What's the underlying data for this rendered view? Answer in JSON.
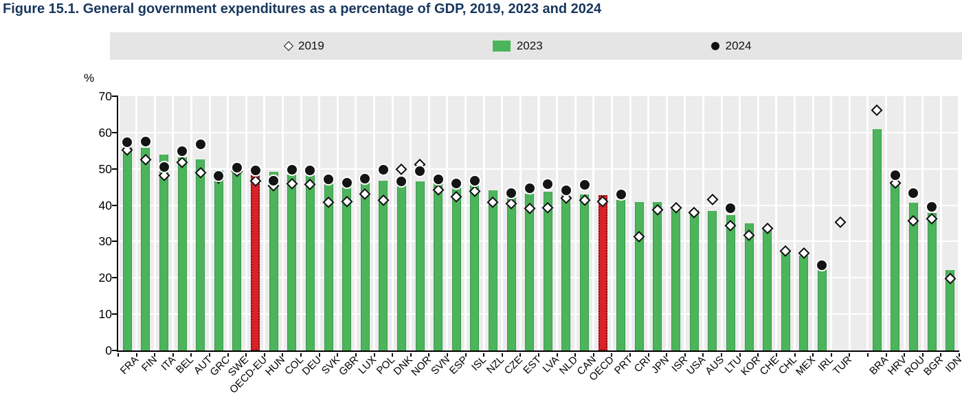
{
  "title": "Figure 15.1. General government expenditures as a percentage of GDP, 2019, 2023 and 2024",
  "legend": [
    {
      "label": "2019",
      "marker": "diamond"
    },
    {
      "label": "2023",
      "marker": "bar"
    },
    {
      "label": "2024",
      "marker": "dot"
    }
  ],
  "y_axis": {
    "unit_label": "%",
    "ticks": [
      0,
      10,
      20,
      30,
      40,
      50,
      60,
      70
    ],
    "max": 70
  },
  "chart_data": {
    "type": "bar",
    "title": "General government expenditures as a percentage of GDP, 2019, 2023 and 2024",
    "xlabel": "",
    "ylabel": "%",
    "ylim": [
      0,
      70
    ],
    "grid": true,
    "legend_position": "top",
    "categories": [
      "FRA",
      "FIN",
      "ITA",
      "BEL",
      "AUT",
      "GRC",
      "SWE",
      "OECD-EU",
      "HUN",
      "COL",
      "DEU",
      "SVK",
      "GBR",
      "LUX",
      "POL",
      "DNK",
      "NOR",
      "SVN",
      "ESP",
      "ISL",
      "NZL",
      "CZE",
      "EST",
      "LVA",
      "NLD",
      "CAN",
      "OECD",
      "PRT",
      "CRI",
      "JPN",
      "ISR",
      "USA",
      "AUS",
      "LTU",
      "KOR",
      "CHE",
      "CHL",
      "MEX",
      "IRL",
      "TUR",
      "BRA",
      "HRV",
      "ROU",
      "BGR",
      "IDN"
    ],
    "series": [
      {
        "name": "2019",
        "marker": "diamond",
        "values": [
          55.2,
          52.6,
          48.2,
          51.8,
          49.0,
          47.5,
          49.3,
          46.8,
          45.5,
          46.0,
          45.8,
          40.9,
          41.0,
          43.1,
          41.5,
          50.0,
          51.3,
          44.2,
          42.3,
          43.9,
          40.8,
          40.5,
          39.2,
          39.4,
          42.0,
          41.4,
          41.0,
          null,
          31.5,
          38.7,
          39.4,
          38.0,
          41.7,
          34.4,
          31.8,
          33.6,
          27.4,
          26.8,
          null,
          35.3,
          66.3,
          46.2,
          35.8,
          36.4,
          19.9
        ]
      },
      {
        "name": "2023",
        "marker": "bar",
        "values": [
          56.0,
          55.8,
          54.0,
          53.2,
          52.6,
          49.6,
          49.4,
          49.0,
          49.2,
          48.5,
          48.3,
          45.9,
          45.0,
          46.1,
          46.8,
          46.8,
          46.5,
          46.3,
          45.2,
          46.3,
          44.0,
          42.7,
          43.2,
          43.7,
          43.0,
          42.9,
          42.8,
          41.5,
          40.9,
          40.8,
          39.2,
          38.6,
          38.5,
          37.2,
          35.0,
          33.3,
          26.9,
          26.2,
          22.3,
          null,
          61.0,
          46.5,
          40.7,
          37.8,
          22.1
        ]
      },
      {
        "name": "2024",
        "marker": "dot",
        "values": [
          57.4,
          57.5,
          50.6,
          54.9,
          56.8,
          48.0,
          50.4,
          49.6,
          46.8,
          49.8,
          49.5,
          47.1,
          46.1,
          47.3,
          49.8,
          46.5,
          49.4,
          47.2,
          45.9,
          46.7,
          null,
          43.3,
          44.7,
          45.8,
          44.1,
          45.6,
          null,
          42.9,
          null,
          null,
          null,
          null,
          null,
          39.2,
          null,
          null,
          null,
          null,
          23.4,
          null,
          null,
          48.3,
          43.3,
          39.6,
          null
        ]
      }
    ],
    "highlighted_categories": [
      "OECD-EU",
      "OECD"
    ],
    "gap_after": "TUR",
    "colors": {
      "bar": "#4cb45a",
      "highlight_bar": "#d8232a",
      "dot": "#141414",
      "diamond_fill": "#ffffff",
      "plot_bg": "#ececec",
      "title": "#17375d",
      "legend_bg": "#e5e5e5"
    }
  }
}
